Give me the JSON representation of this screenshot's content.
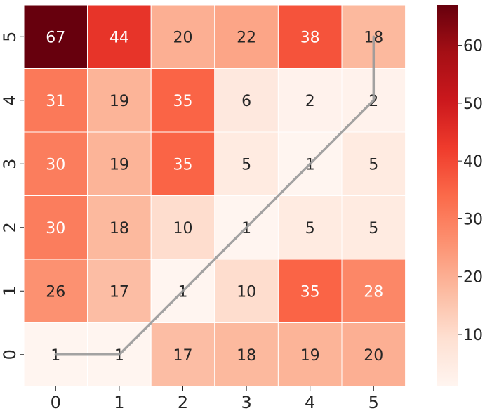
{
  "chart_data": {
    "type": "heatmap",
    "x_categories": [
      "0",
      "1",
      "2",
      "3",
      "4",
      "5"
    ],
    "y_categories": [
      "0",
      "1",
      "2",
      "3",
      "4",
      "5"
    ],
    "rows_top_to_bottom": [
      {
        "y": "5",
        "values": [
          67,
          44,
          20,
          22,
          38,
          18
        ]
      },
      {
        "y": "4",
        "values": [
          31,
          19,
          35,
          6,
          2,
          2
        ]
      },
      {
        "y": "3",
        "values": [
          30,
          19,
          35,
          5,
          1,
          5
        ]
      },
      {
        "y": "2",
        "values": [
          30,
          18,
          10,
          1,
          5,
          5
        ]
      },
      {
        "y": "1",
        "values": [
          26,
          17,
          1,
          10,
          35,
          28
        ]
      },
      {
        "y": "0",
        "values": [
          1,
          1,
          17,
          18,
          19,
          20
        ]
      }
    ],
    "colormap": "Reds",
    "color_range": [
      1,
      67
    ],
    "colorbar_ticks": [
      10,
      20,
      30,
      40,
      50,
      60
    ],
    "path_overlay": {
      "color": "#999999",
      "points": [
        {
          "x": 0,
          "y": 0
        },
        {
          "x": 1,
          "y": 0
        },
        {
          "x": 5,
          "y": 4
        },
        {
          "x": 5,
          "y": 5
        }
      ]
    },
    "title": "",
    "xlabel": "",
    "ylabel": ""
  }
}
